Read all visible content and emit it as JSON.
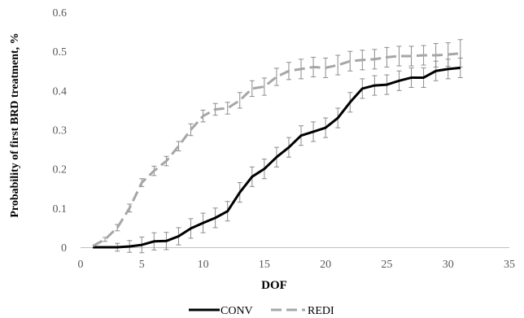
{
  "chart_data": {
    "type": "line",
    "title": "",
    "xlabel": "DOF",
    "ylabel": "Probability of first BRD treatment, %",
    "xlim": [
      0,
      35
    ],
    "ylim": [
      0,
      0.6
    ],
    "x_ticks": [
      "0",
      "5",
      "10",
      "15",
      "20",
      "25",
      "30",
      "35"
    ],
    "y_ticks": [
      "0",
      "0.1",
      "0.2",
      "0.3",
      "0.4",
      "0.5",
      "0.6"
    ],
    "grid": false,
    "legend_position": "bottom",
    "x": [
      1,
      2,
      3,
      4,
      5,
      6,
      7,
      8,
      9,
      10,
      11,
      12,
      13,
      14,
      15,
      16,
      17,
      18,
      19,
      20,
      21,
      22,
      23,
      24,
      25,
      26,
      27,
      28,
      29,
      30,
      31
    ],
    "series": [
      {
        "name": "CONV",
        "style": "solid",
        "color": "#000000",
        "values": [
          0,
          0,
          0,
          0.002,
          0.006,
          0.015,
          0.016,
          0.028,
          0.048,
          0.062,
          0.075,
          0.092,
          0.14,
          0.18,
          0.2,
          0.23,
          0.255,
          0.285,
          0.295,
          0.305,
          0.33,
          0.37,
          0.405,
          0.413,
          0.415,
          0.425,
          0.433,
          0.433,
          0.45,
          0.455,
          0.458
        ],
        "error": [
          0,
          0,
          0.01,
          0.015,
          0.02,
          0.022,
          0.022,
          0.022,
          0.025,
          0.025,
          0.025,
          0.025,
          0.025,
          0.025,
          0.025,
          0.025,
          0.025,
          0.025,
          0.025,
          0.025,
          0.025,
          0.025,
          0.025,
          0.025,
          0.025,
          0.025,
          0.025,
          0.025,
          0.025,
          0.025,
          0.025
        ]
      },
      {
        "name": "REDI",
        "style": "dashed",
        "color": "#a6a6a6",
        "values": [
          0.003,
          0.02,
          0.05,
          0.1,
          0.165,
          0.195,
          0.22,
          0.258,
          0.3,
          0.335,
          0.352,
          0.355,
          0.375,
          0.405,
          0.41,
          0.435,
          0.45,
          0.455,
          0.46,
          0.458,
          0.465,
          0.475,
          0.478,
          0.48,
          0.485,
          0.488,
          0.488,
          0.49,
          0.49,
          0.492,
          0.495
        ],
        "error": [
          0,
          0.005,
          0.008,
          0.01,
          0.01,
          0.012,
          0.012,
          0.012,
          0.015,
          0.015,
          0.015,
          0.015,
          0.02,
          0.02,
          0.022,
          0.022,
          0.022,
          0.025,
          0.025,
          0.025,
          0.025,
          0.025,
          0.025,
          0.025,
          0.025,
          0.025,
          0.025,
          0.025,
          0.03,
          0.03,
          0.035
        ]
      }
    ]
  }
}
